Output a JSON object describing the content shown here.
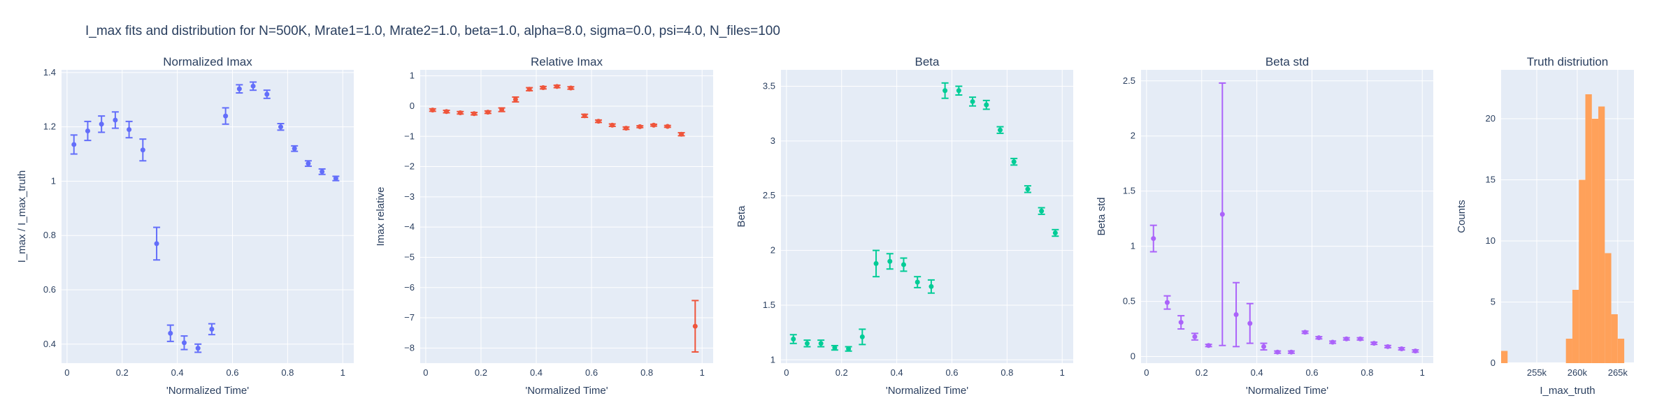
{
  "figure": {
    "title": "I_max fits and distribution for N=500K, Mrate1=1.0, Mrate2=1.0, beta=1.0, alpha=8.0, sigma=0.0,  psi=4.0, N_files=100"
  },
  "style": {
    "plot_bg": "#e5ecf6",
    "grid": "#ffffff",
    "text": "#2a3f5f",
    "series_colors": [
      "#636efa",
      "#ef553b",
      "#00cc96",
      "#ab63fa",
      "#ffa15a"
    ]
  },
  "chart_data": [
    {
      "type": "scatter",
      "title": "Normalized Imax",
      "xlabel": "'Normalized Time'",
      "ylabel": "I_max / I_max_truth",
      "color": "#636efa",
      "xlim": [
        -0.02,
        1.04
      ],
      "ylim": [
        0.33,
        1.41
      ],
      "xticks": [
        0,
        0.2,
        0.4,
        0.6,
        0.8,
        1
      ],
      "xtick_labels": [
        "0",
        "0.2",
        "0.4",
        "0.6",
        "0.8",
        "1"
      ],
      "yticks": [
        0.4,
        0.6,
        0.8,
        1.0,
        1.2,
        1.4
      ],
      "ytick_labels": [
        "0.4",
        "0.6",
        "0.8",
        "1",
        "1.2",
        "1.4"
      ],
      "x": [
        0.025,
        0.075,
        0.125,
        0.175,
        0.225,
        0.275,
        0.325,
        0.375,
        0.425,
        0.475,
        0.525,
        0.575,
        0.625,
        0.675,
        0.725,
        0.775,
        0.825,
        0.875,
        0.925,
        0.975
      ],
      "y": [
        1.135,
        1.185,
        1.21,
        1.225,
        1.19,
        1.115,
        0.77,
        0.44,
        0.405,
        0.385,
        0.455,
        1.24,
        1.34,
        1.35,
        1.32,
        1.2,
        1.12,
        1.065,
        1.035,
        1.01
      ],
      "err": [
        0.035,
        0.035,
        0.03,
        0.03,
        0.03,
        0.04,
        0.06,
        0.03,
        0.025,
        0.015,
        0.02,
        0.03,
        0.015,
        0.015,
        0.015,
        0.012,
        0.01,
        0.01,
        0.01,
        0.008
      ]
    },
    {
      "type": "scatter",
      "title": "Relative Imax",
      "xlabel": "'Normalized Time'",
      "ylabel": "Imax relative",
      "color": "#ef553b",
      "xlim": [
        -0.02,
        1.04
      ],
      "ylim": [
        -8.5,
        1.2
      ],
      "xticks": [
        0,
        0.2,
        0.4,
        0.6,
        0.8,
        1
      ],
      "xtick_labels": [
        "0",
        "0.2",
        "0.4",
        "0.6",
        "0.8",
        "1"
      ],
      "yticks": [
        1,
        0,
        -1,
        -2,
        -3,
        -4,
        -5,
        -6,
        -7,
        -8
      ],
      "ytick_labels": [
        "1",
        "0",
        "−1",
        "−2",
        "−3",
        "−4",
        "−5",
        "−6",
        "−7",
        "−8"
      ],
      "x": [
        0.025,
        0.075,
        0.125,
        0.175,
        0.225,
        0.275,
        0.325,
        0.375,
        0.425,
        0.475,
        0.525,
        0.575,
        0.625,
        0.675,
        0.725,
        0.775,
        0.825,
        0.875,
        0.925,
        0.975
      ],
      "y": [
        -0.13,
        -0.18,
        -0.22,
        -0.25,
        -0.2,
        -0.12,
        0.22,
        0.56,
        0.61,
        0.65,
        0.6,
        -0.32,
        -0.5,
        -0.63,
        -0.73,
        -0.68,
        -0.63,
        -0.67,
        -0.93,
        -7.28
      ],
      "err": [
        0.04,
        0.04,
        0.04,
        0.04,
        0.04,
        0.06,
        0.08,
        0.05,
        0.04,
        0.04,
        0.04,
        0.05,
        0.04,
        0.04,
        0.04,
        0.03,
        0.03,
        0.03,
        0.05,
        0.85
      ]
    },
    {
      "type": "scatter",
      "title": "Beta",
      "xlabel": "'Normalized Time'",
      "ylabel": "Beta",
      "color": "#00cc96",
      "xlim": [
        -0.02,
        1.04
      ],
      "ylim": [
        0.97,
        3.65
      ],
      "xticks": [
        0,
        0.2,
        0.4,
        0.6,
        0.8,
        1
      ],
      "xtick_labels": [
        "0",
        "0.2",
        "0.4",
        "0.6",
        "0.8",
        "1"
      ],
      "yticks": [
        1,
        1.5,
        2,
        2.5,
        3,
        3.5
      ],
      "ytick_labels": [
        "1",
        "1.5",
        "2",
        "2.5",
        "3",
        "3.5"
      ],
      "x": [
        0.025,
        0.075,
        0.125,
        0.175,
        0.225,
        0.275,
        0.325,
        0.375,
        0.425,
        0.475,
        0.525,
        0.575,
        0.625,
        0.675,
        0.725,
        0.775,
        0.825,
        0.875,
        0.925,
        0.975
      ],
      "y": [
        1.19,
        1.15,
        1.15,
        1.11,
        1.1,
        1.21,
        1.88,
        1.9,
        1.87,
        1.71,
        1.67,
        3.46,
        3.46,
        3.36,
        3.33,
        3.1,
        2.81,
        2.56,
        2.36,
        2.16
      ],
      "err": [
        0.04,
        0.03,
        0.03,
        0.02,
        0.02,
        0.07,
        0.12,
        0.07,
        0.06,
        0.05,
        0.06,
        0.07,
        0.04,
        0.04,
        0.04,
        0.03,
        0.03,
        0.03,
        0.03,
        0.03
      ]
    },
    {
      "type": "scatter",
      "title": "Beta std",
      "xlabel": "'Normalized Time'",
      "ylabel": "Beta std",
      "color": "#ab63fa",
      "xlim": [
        -0.02,
        1.04
      ],
      "ylim": [
        -0.06,
        2.6
      ],
      "xticks": [
        0,
        0.2,
        0.4,
        0.6,
        0.8,
        1
      ],
      "xtick_labels": [
        "0",
        "0.2",
        "0.4",
        "0.6",
        "0.8",
        "1"
      ],
      "yticks": [
        0,
        0.5,
        1,
        1.5,
        2,
        2.5
      ],
      "ytick_labels": [
        "0",
        "0.5",
        "1",
        "1.5",
        "2",
        "2.5"
      ],
      "x": [
        0.025,
        0.075,
        0.125,
        0.175,
        0.225,
        0.275,
        0.325,
        0.375,
        0.425,
        0.475,
        0.525,
        0.575,
        0.625,
        0.675,
        0.725,
        0.775,
        0.825,
        0.875,
        0.925,
        0.975
      ],
      "y": [
        1.07,
        0.49,
        0.31,
        0.18,
        0.1,
        1.29,
        0.38,
        0.3,
        0.09,
        0.04,
        0.04,
        0.22,
        0.17,
        0.13,
        0.16,
        0.16,
        0.12,
        0.09,
        0.07,
        0.05
      ],
      "err": [
        0.12,
        0.06,
        0.06,
        0.03,
        0.01,
        1.19,
        0.29,
        0.18,
        0.03,
        0.01,
        0.01,
        0.01,
        0.01,
        0.01,
        0.01,
        0.01,
        0.01,
        0.01,
        0.01,
        0.01
      ]
    },
    {
      "type": "bar",
      "title": "Truth distriution",
      "xlabel": "I_max_truth",
      "ylabel": "Counts",
      "color": "#ffa15a",
      "xlim": [
        250600,
        267000
      ],
      "ylim": [
        0,
        24
      ],
      "xticks": [
        255000,
        260000,
        265000
      ],
      "xtick_labels": [
        "255k",
        "260k",
        "265k"
      ],
      "yticks": [
        0,
        5,
        10,
        15,
        20
      ],
      "ytick_labels": [
        "0",
        "5",
        "10",
        "15",
        "20"
      ],
      "bin_edges": [
        250600,
        251400,
        252200,
        253000,
        253800,
        254600,
        255400,
        256200,
        257000,
        257800,
        258600,
        259400,
        260200,
        261000,
        261800,
        262600,
        263400,
        264200,
        265000,
        265800,
        266600
      ],
      "counts": [
        1,
        0,
        0,
        0,
        0,
        0,
        0,
        0,
        0,
        0,
        2,
        6,
        15,
        22,
        20,
        21,
        9,
        4,
        2,
        0
      ]
    }
  ]
}
